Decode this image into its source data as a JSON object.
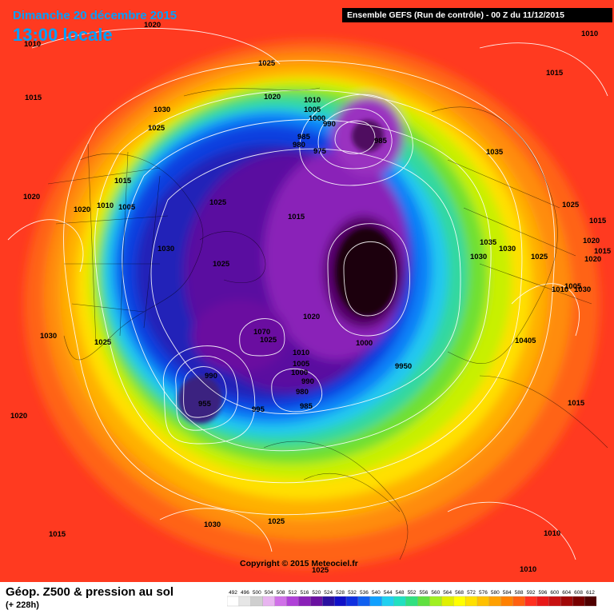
{
  "header": {
    "date_line": "Dimanche 20 décembre 2015",
    "time_line": "13:00 locale",
    "model_info": "Ensemble GEFS  (Run de contrôle)  -  00 Z du 11/12/2015"
  },
  "copyright": "Copyright © 2015 Meteociel.fr",
  "footer": {
    "title": "Géop. Z500 & pression au sol",
    "subtitle": "(+ 228h)"
  },
  "legend": {
    "values": [
      "492",
      "496",
      "500",
      "504",
      "508",
      "512",
      "516",
      "520",
      "524",
      "528",
      "532",
      "536",
      "540",
      "544",
      "548",
      "552",
      "556",
      "560",
      "564",
      "568",
      "572",
      "576",
      "580",
      "584",
      "588",
      "592",
      "596",
      "600",
      "604",
      "608",
      "612"
    ],
    "colors": [
      "#ffffff",
      "#e6e6e6",
      "#cfcfcf",
      "#e8b4f0",
      "#d070e8",
      "#b040d8",
      "#8a20b8",
      "#6a10a0",
      "#2a10a0",
      "#1010c8",
      "#1030e0",
      "#1060f0",
      "#10a0ff",
      "#20d0f0",
      "#20e0c0",
      "#30e080",
      "#60e040",
      "#a0f020",
      "#e0f000",
      "#ffff00",
      "#ffe000",
      "#ffc000",
      "#ffa000",
      "#ff8000",
      "#ff6010",
      "#ff3020",
      "#e81818",
      "#c81010",
      "#a00808",
      "#780000",
      "#500000"
    ]
  },
  "isobars": [
    {
      "label": "1010"
    },
    {
      "label": "1020"
    },
    {
      "label": "1010"
    },
    {
      "label": "1025"
    },
    {
      "label": "1015"
    },
    {
      "label": "1030"
    },
    {
      "label": "1025"
    },
    {
      "label": "1020"
    },
    {
      "label": "1010"
    },
    {
      "label": "1005"
    },
    {
      "label": "1000"
    },
    {
      "label": "990"
    },
    {
      "label": "985"
    },
    {
      "label": "980"
    },
    {
      "label": "975"
    },
    {
      "label": "985"
    },
    {
      "label": "1035"
    },
    {
      "label": "1015"
    },
    {
      "label": "1020"
    },
    {
      "label": "1010"
    },
    {
      "label": "1005"
    },
    {
      "label": "1015"
    },
    {
      "label": "1025"
    },
    {
      "label": "1030"
    },
    {
      "label": "1025"
    },
    {
      "label": "1015"
    },
    {
      "label": "1025"
    },
    {
      "label": "1015"
    },
    {
      "label": "1020"
    },
    {
      "label": "1035"
    },
    {
      "label": "1030"
    },
    {
      "label": "1030"
    },
    {
      "label": "1025"
    },
    {
      "label": "1020"
    },
    {
      "label": "1015"
    },
    {
      "label": "1020"
    },
    {
      "label": "1005"
    },
    {
      "label": "1010"
    },
    {
      "label": "1030"
    },
    {
      "label": "1030"
    },
    {
      "label": "1025"
    },
    {
      "label": "1070"
    },
    {
      "label": "1025"
    },
    {
      "label": "1020"
    },
    {
      "label": "1000"
    },
    {
      "label": "1010"
    },
    {
      "label": "1005"
    },
    {
      "label": "1000"
    },
    {
      "label": "990"
    },
    {
      "label": "980"
    },
    {
      "label": "985"
    },
    {
      "label": "9950"
    },
    {
      "label": "10405"
    },
    {
      "label": "990"
    },
    {
      "label": "995"
    },
    {
      "label": "955"
    },
    {
      "label": "1020"
    },
    {
      "label": "1015"
    },
    {
      "label": "1030"
    },
    {
      "label": "1025"
    },
    {
      "label": "1015"
    },
    {
      "label": "1010"
    },
    {
      "label": "1010"
    },
    {
      "label": "1025"
    }
  ]
}
